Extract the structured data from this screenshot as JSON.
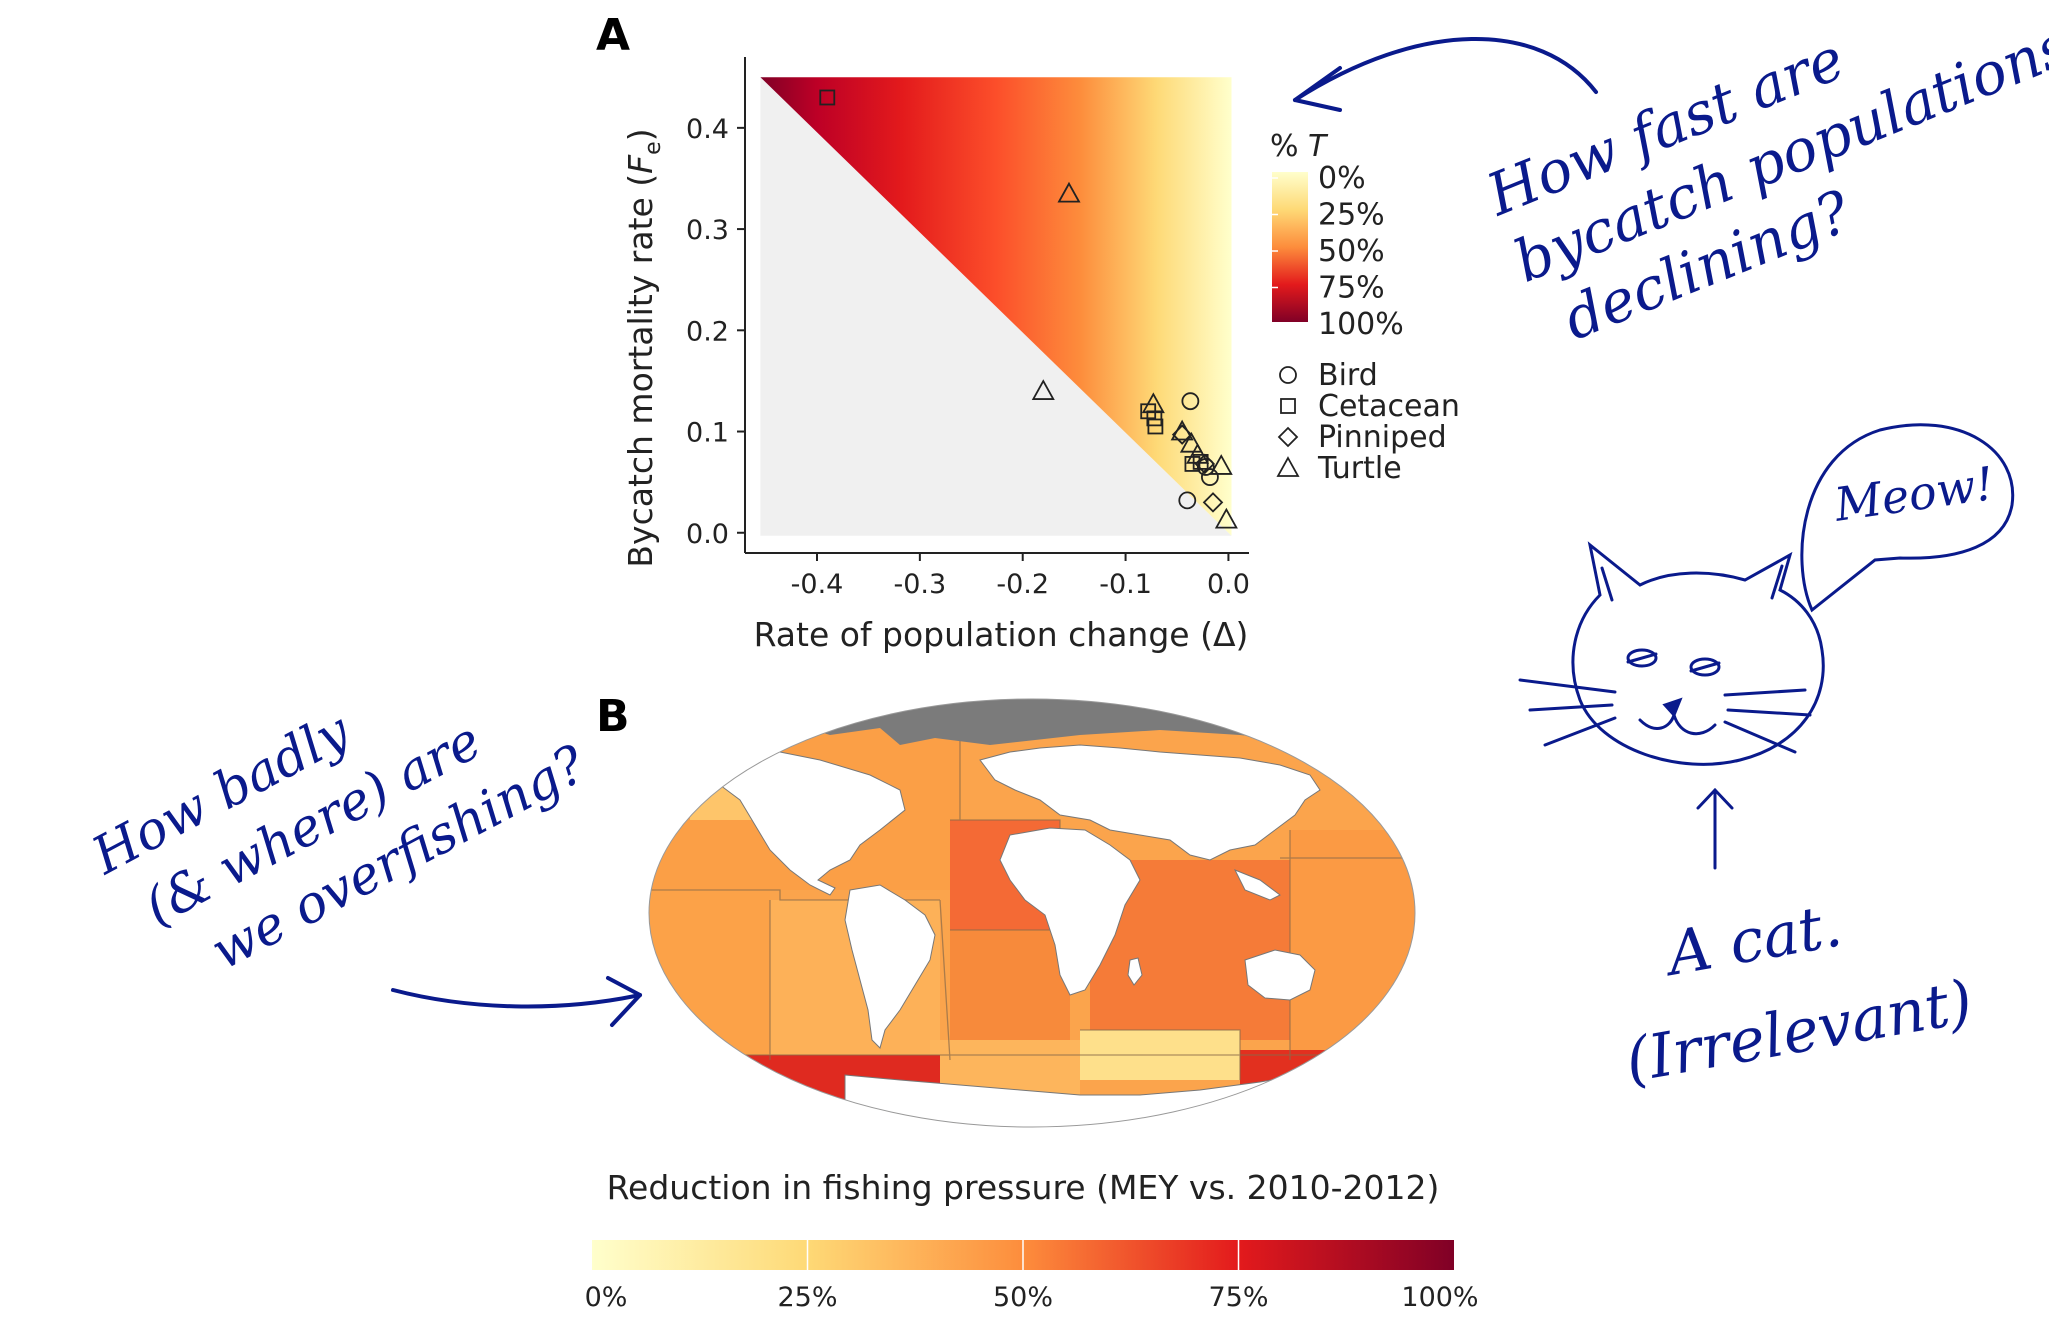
{
  "chart_data": [
    {
      "panel": "A",
      "type": "scatter",
      "xlabel": "Rate of population change (Δ)",
      "ylabel": "Bycatch mortality rate (Fe)",
      "ylabel_main": "Bycatch mortality rate (",
      "ylabel_F": "F",
      "ylabel_sub": "e",
      "ylabel_end": ")",
      "xlim": [
        -0.47,
        0.02
      ],
      "ylim": [
        -0.02,
        0.47
      ],
      "xticks": [
        -0.4,
        -0.3,
        -0.2,
        -0.1,
        0.0
      ],
      "xtick_labels": [
        "-0.4",
        "-0.3",
        "-0.2",
        "-0.1",
        "0.0"
      ],
      "yticks": [
        0.0,
        0.1,
        0.2,
        0.3,
        0.4
      ],
      "ytick_labels": [
        "0.0",
        "0.1",
        "0.2",
        "0.3",
        "0.4"
      ],
      "fill_legend": {
        "title_prefix": "% ",
        "title_var": "T",
        "labels": [
          "0%",
          "25%",
          "50%",
          "75%",
          "100%"
        ],
        "colors": [
          "#ffffcc",
          "#fed976",
          "#fd8d3c",
          "#e31a1c",
          "#800026"
        ]
      },
      "shape_legend": [
        "Bird",
        "Cetacean",
        "Pinniped",
        "Turtle"
      ],
      "series": [
        {
          "name": "Bird",
          "shape": "circle",
          "points": [
            [
              -0.037,
              0.13
            ],
            [
              -0.04,
              0.032
            ],
            [
              -0.018,
              0.055
            ],
            [
              -0.022,
              0.065
            ]
          ]
        },
        {
          "name": "Cetacean",
          "shape": "square",
          "points": [
            [
              -0.39,
              0.43
            ],
            [
              -0.078,
              0.12
            ],
            [
              -0.072,
              0.113
            ],
            [
              -0.071,
              0.105
            ],
            [
              -0.035,
              0.068
            ],
            [
              -0.027,
              0.07
            ]
          ]
        },
        {
          "name": "Pinniped",
          "shape": "diamond",
          "points": [
            [
              -0.045,
              0.097
            ],
            [
              -0.015,
              0.03
            ],
            [
              -0.023,
              0.068
            ]
          ]
        },
        {
          "name": "Turtle",
          "shape": "triangle",
          "points": [
            [
              -0.155,
              0.335
            ],
            [
              -0.18,
              0.14
            ],
            [
              -0.073,
              0.127
            ],
            [
              -0.045,
              0.1
            ],
            [
              -0.036,
              0.088
            ],
            [
              -0.03,
              0.077
            ],
            [
              -0.007,
              0.066
            ],
            [
              -0.002,
              0.013
            ]
          ]
        }
      ]
    },
    {
      "panel": "B",
      "type": "heatmap",
      "description_kind": "world-map",
      "legend_title": "Reduction in fishing pressure (MEY vs. 2010-2012)",
      "legend_labels": [
        "0%",
        "25%",
        "50%",
        "75%",
        "100%"
      ],
      "legend_colors": [
        "#ffffcc",
        "#fed976",
        "#fd8d3c",
        "#e31a1c",
        "#800026"
      ]
    }
  ],
  "panel_labels": {
    "a": "A",
    "b": "B"
  },
  "annotations": {
    "top_right_lines": [
      "How fast are",
      "bycatch populations",
      "declining?"
    ],
    "left_lines": [
      "How badly",
      "(& where) are",
      "we overfishing?"
    ],
    "speech": "Meow!",
    "cat_lines": [
      "A cat.",
      "(Irrelevant)"
    ]
  }
}
